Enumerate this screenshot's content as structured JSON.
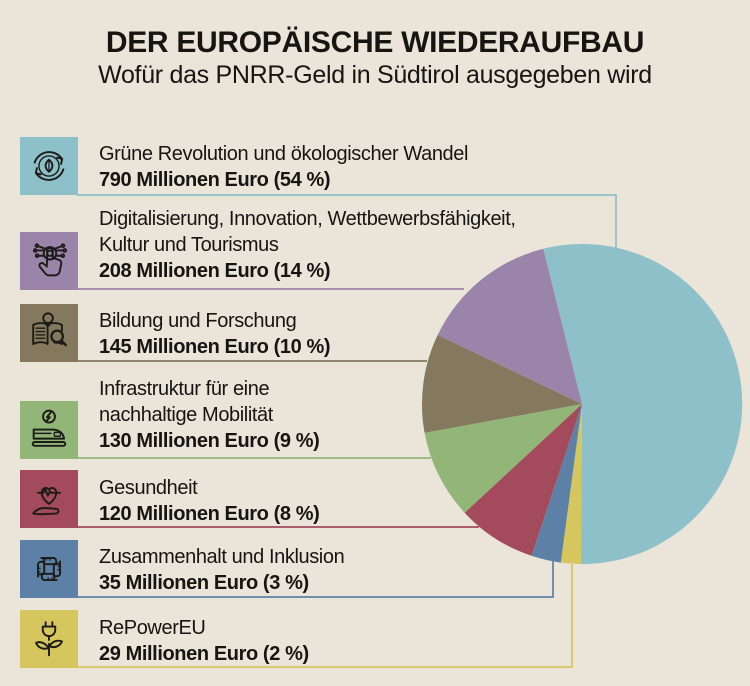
{
  "header": {
    "title": "DER EUROPÄISCHE WIEDERAUFBAU",
    "subtitle": "Wofür das PNRR-Geld in Südtirol ausgegeben wird"
  },
  "chart_data": {
    "type": "pie",
    "title": "DER EUROPÄISCHE WIEDERAUFBAU",
    "subtitle": "Wofür das PNRR-Geld in Südtirol ausgegeben wird",
    "unit": "Millionen Euro",
    "legend_position": "left",
    "start_angle_deg": -14,
    "direction": "clockwise",
    "categories": [
      "Grüne Revolution und ökologischer Wandel",
      "Digitalisierung, Innovation, Wettbewerbsfähigkeit, Kultur und Tourismus",
      "Bildung und Forschung",
      "Infrastruktur für eine nachhaltige Mobilität",
      "Gesundheit",
      "Zusammenhalt und Inklusion",
      "RePowerEU"
    ],
    "values": [
      790,
      208,
      145,
      130,
      120,
      35,
      29
    ],
    "percents": [
      54,
      14,
      10,
      9,
      8,
      3,
      2
    ],
    "slices": [
      {
        "key": "gruene-revolution",
        "label_lines": [
          "Grüne Revolution und ökologischer Wandel"
        ],
        "value_label": "790 Millionen Euro (54 %)",
        "value": 790,
        "percent": 54,
        "color": "#8dc0c9",
        "icon": "eco-cycle-icon"
      },
      {
        "key": "digitalisierung",
        "label_lines": [
          "Digitalisierung, Innovation, Wettbewerbsfähigkeit,",
          "Kultur und Tourismus"
        ],
        "value_label": "208 Millionen Euro (14 %)",
        "value": 208,
        "percent": 14,
        "color": "#9b84aa",
        "icon": "digital-touch-icon"
      },
      {
        "key": "bildung-forschung",
        "label_lines": [
          "Bildung und Forschung"
        ],
        "value_label": "145 Millionen Euro (10 %)",
        "value": 145,
        "percent": 10,
        "color": "#84795e",
        "icon": "education-research-icon"
      },
      {
        "key": "infrastruktur-mobilitaet",
        "label_lines": [
          "Infrastruktur für eine",
          "nachhaltige Mobilität"
        ],
        "value_label": "130 Millionen Euro (9 %)",
        "value": 130,
        "percent": 9,
        "color": "#92b678",
        "icon": "sustainable-mobility-icon"
      },
      {
        "key": "gesundheit",
        "label_lines": [
          "Gesundheit"
        ],
        "value_label": "120 Millionen Euro (8 %)",
        "value": 120,
        "percent": 8,
        "color": "#a34b5c",
        "icon": "health-hand-heart-icon"
      },
      {
        "key": "zusammenhalt-inklusion",
        "label_lines": [
          "Zusammenhalt und Inklusion"
        ],
        "value_label": "35 Millionen Euro (3 %)",
        "value": 35,
        "percent": 3,
        "color": "#5d81a6",
        "icon": "inclusion-hands-icon"
      },
      {
        "key": "repowereu",
        "label_lines": [
          "RePowerEU"
        ],
        "value_label": "29 Millionen Euro (2 %)",
        "value": 29,
        "percent": 2,
        "color": "#d6c65e",
        "icon": "repower-plug-plant-icon"
      }
    ]
  },
  "colors": {
    "background": "#eae4d9",
    "text": "#171511",
    "icon_stroke": "#1d1b17"
  }
}
